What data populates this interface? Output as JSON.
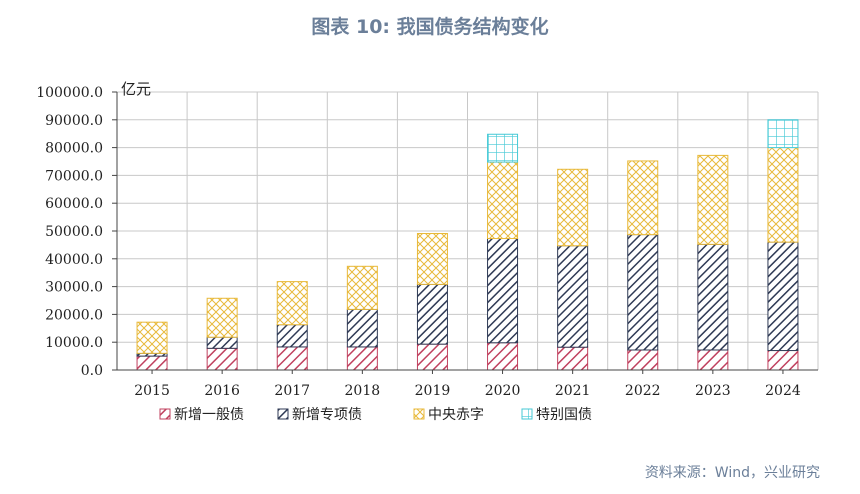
{
  "title": "图表 10: 我国债务结构变化",
  "source": "资料来源：Wind，兴业研究",
  "chart_data": {
    "type": "bar",
    "stacked": true,
    "categories": [
      "2015",
      "2016",
      "2017",
      "2018",
      "2019",
      "2020",
      "2021",
      "2022",
      "2023",
      "2024"
    ],
    "ylabel": "亿元",
    "ylim": [
      0,
      100000
    ],
    "yticks": [
      "0.0",
      "10000.0",
      "20000.0",
      "30000.0",
      "40000.0",
      "50000.0",
      "60000.0",
      "70000.0",
      "80000.0",
      "90000.0",
      "100000.0"
    ],
    "grid": true,
    "legend_position": "bottom",
    "series": [
      {
        "name": "新增一般债",
        "values": [
          5000,
          7800,
          8300,
          8300,
          9300,
          9800,
          8200,
          7200,
          7200,
          7000
        ],
        "color": "#c0415f",
        "pattern": "diag-light"
      },
      {
        "name": "新增专项债",
        "values": [
          1000,
          4000,
          8000,
          13500,
          21500,
          37500,
          36500,
          41500,
          38000,
          39000
        ],
        "color": "#2f3a55",
        "pattern": "diag-dense"
      },
      {
        "name": "中央赤字",
        "values": [
          11200,
          14000,
          15500,
          15500,
          18300,
          27500,
          27500,
          26500,
          32000,
          34000
        ],
        "color": "#e8b93a",
        "pattern": "crosshatch"
      },
      {
        "name": "特别国债",
        "values": [
          0,
          0,
          0,
          0,
          0,
          10000,
          0,
          0,
          0,
          10000
        ],
        "color": "#45c9d6",
        "pattern": "grid"
      }
    ]
  }
}
